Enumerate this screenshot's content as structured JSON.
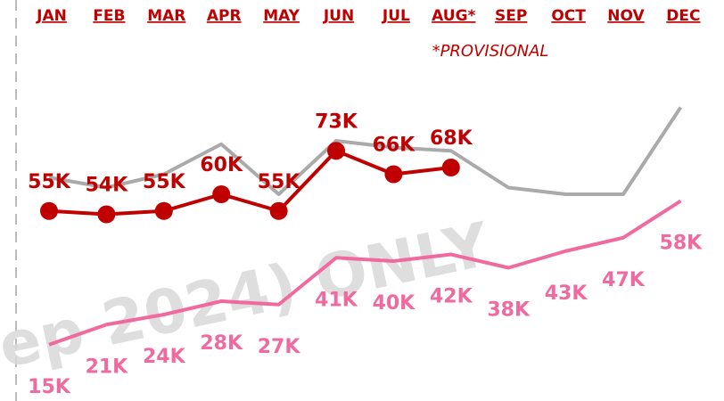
{
  "chart_data": {
    "type": "line",
    "categories": [
      "JAN",
      "FEB",
      "MAR",
      "APR",
      "MAY",
      "JUN",
      "JUL",
      "AUG*",
      "SEP",
      "OCT",
      "NOV",
      "DEC"
    ],
    "annotation": "*PROVISIONAL",
    "watermark": "ep 2024) ONLY",
    "ylim": [
      0,
      100
    ],
    "series": [
      {
        "color": "#aaaaaa",
        "values": [
          65,
          62,
          66,
          75,
          60,
          76,
          74,
          73,
          62,
          60,
          60,
          86
        ]
      },
      {
        "color": "#f06aa0",
        "values": [
          15,
          21,
          24,
          28,
          27,
          41,
          40,
          42,
          38,
          43,
          47,
          58
        ],
        "value_labels": [
          "15K",
          "21K",
          "24K",
          "28K",
          "27K",
          "41K",
          "40K",
          "42K",
          "38K",
          "43K",
          "47K",
          "58K"
        ]
      },
      {
        "color": "#c00000",
        "markers": true,
        "values": [
          55,
          54,
          55,
          60,
          55,
          73,
          66,
          68,
          null,
          null,
          null,
          null
        ],
        "value_labels": [
          "55K",
          "54K",
          "55K",
          "60K",
          "55K",
          "73K",
          "66K",
          "68K",
          null,
          null,
          null,
          null
        ]
      }
    ]
  }
}
